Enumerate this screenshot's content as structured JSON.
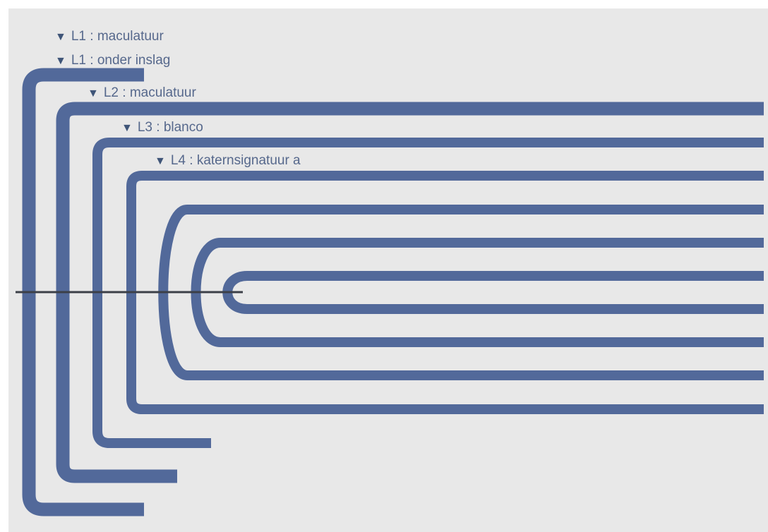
{
  "colors": {
    "background": "#e8e8e8",
    "sheet": "#52699a",
    "label": "#56688c",
    "triangle": "#3f5578",
    "spine_line": "#3c4048"
  },
  "icons": {
    "collapse": "triangle-down-icon"
  },
  "labels": [
    {
      "glyph": "▼",
      "text": "L1 : maculatuur"
    },
    {
      "glyph": "▼",
      "text": "L1 : onder inslag"
    },
    {
      "glyph": "▼",
      "text": "L2 : maculatuur"
    },
    {
      "glyph": "▼",
      "text": "L3 : blanco"
    },
    {
      "glyph": "▼",
      "text": "L4 : katernsignatuur a"
    }
  ]
}
